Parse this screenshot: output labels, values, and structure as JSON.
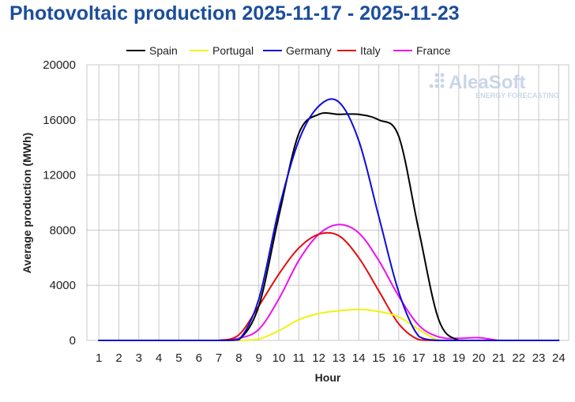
{
  "chart_data": {
    "type": "line",
    "title": "Photovoltaic production 2025-11-17 - 2025-11-23",
    "xlabel": "Hour",
    "ylabel": "Average production (MWh)",
    "x": [
      1,
      2,
      3,
      4,
      5,
      6,
      7,
      8,
      9,
      10,
      11,
      12,
      13,
      14,
      15,
      16,
      17,
      18,
      19,
      20,
      21,
      22,
      23,
      24
    ],
    "xlim": [
      0.4,
      24.5
    ],
    "ylim": [
      0,
      20000
    ],
    "yticks": [
      0,
      4000,
      8000,
      12000,
      16000,
      20000
    ],
    "grid": true,
    "legend_position": "top",
    "series": [
      {
        "name": "Spain",
        "color": "#000000",
        "values": [
          0,
          0,
          0,
          0,
          0,
          0,
          0,
          50,
          2500,
          9000,
          15000,
          16400,
          16400,
          16400,
          16000,
          14800,
          8000,
          1500,
          0,
          0,
          0,
          0,
          0,
          0
        ]
      },
      {
        "name": "Portugal",
        "color": "#f2f20d",
        "values": [
          0,
          0,
          0,
          0,
          0,
          0,
          0,
          0,
          100,
          700,
          1500,
          1950,
          2150,
          2250,
          2100,
          1700,
          800,
          0,
          0,
          0,
          0,
          0,
          0,
          0
        ]
      },
      {
        "name": "Germany",
        "color": "#0d0dd9",
        "values": [
          0,
          0,
          0,
          0,
          0,
          0,
          0,
          50,
          3000,
          9500,
          14500,
          17000,
          17300,
          14500,
          9000,
          3500,
          300,
          0,
          0,
          0,
          0,
          0,
          0,
          0
        ]
      },
      {
        "name": "Italy",
        "color": "#e00d0d",
        "values": [
          0,
          0,
          0,
          0,
          0,
          0,
          0,
          400,
          2500,
          4800,
          6700,
          7700,
          7600,
          6000,
          3600,
          1200,
          50,
          0,
          0,
          0,
          0,
          0,
          0,
          0
        ]
      },
      {
        "name": "France",
        "color": "#ee11ee",
        "values": [
          0,
          0,
          0,
          0,
          0,
          0,
          0,
          150,
          800,
          3000,
          5800,
          7700,
          8400,
          7800,
          5800,
          3200,
          1100,
          250,
          150,
          200,
          0,
          0,
          0,
          0
        ]
      }
    ]
  },
  "watermark": {
    "name": "AleaSoft",
    "tagline": "ENERGY FORECASTING"
  }
}
